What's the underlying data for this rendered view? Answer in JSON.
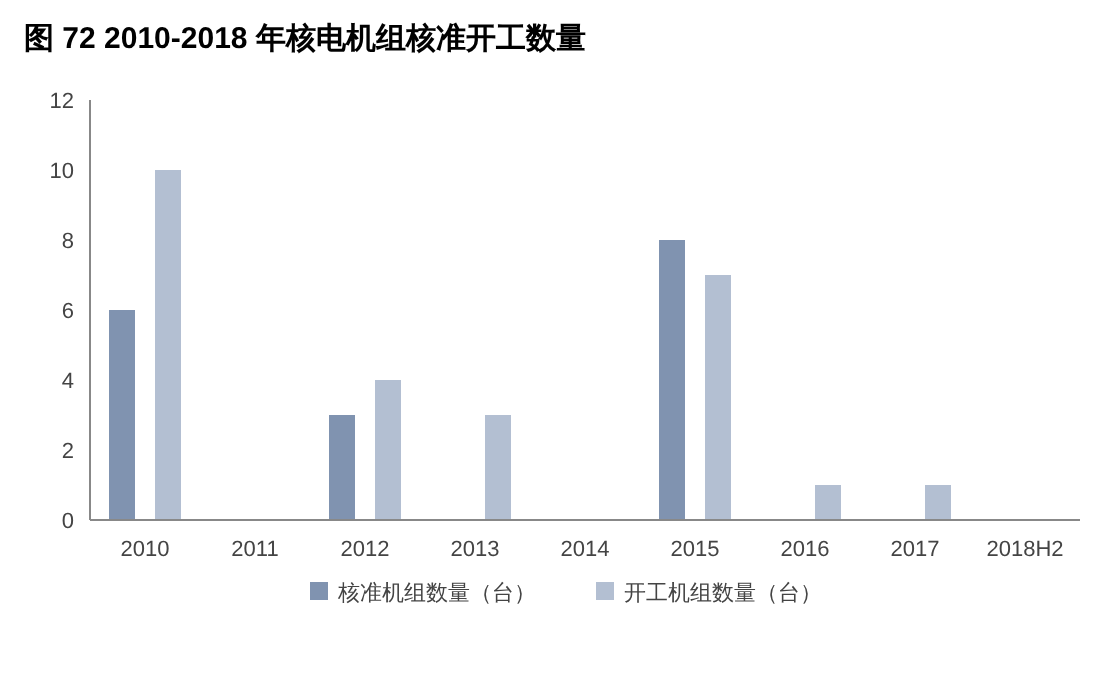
{
  "chart_data": {
    "type": "bar",
    "title": "图 72 2010-2018 年核电机组核准开工数量",
    "categories": [
      "2010",
      "2011",
      "2012",
      "2013",
      "2014",
      "2015",
      "2016",
      "2017",
      "2018H2"
    ],
    "series": [
      {
        "name": "核准机组数量（台）",
        "color": "#8093b0",
        "values": [
          6,
          0,
          3,
          0,
          0,
          8,
          0,
          0,
          0
        ]
      },
      {
        "name": "开工机组数量（台）",
        "color": "#b3bfd2",
        "values": [
          10,
          0,
          4,
          3,
          0,
          7,
          1,
          1,
          0
        ]
      }
    ],
    "ylim": [
      0,
      12
    ],
    "yticks": [
      0,
      2,
      4,
      6,
      8,
      10,
      12
    ],
    "grid": false,
    "legend": "bottom"
  }
}
